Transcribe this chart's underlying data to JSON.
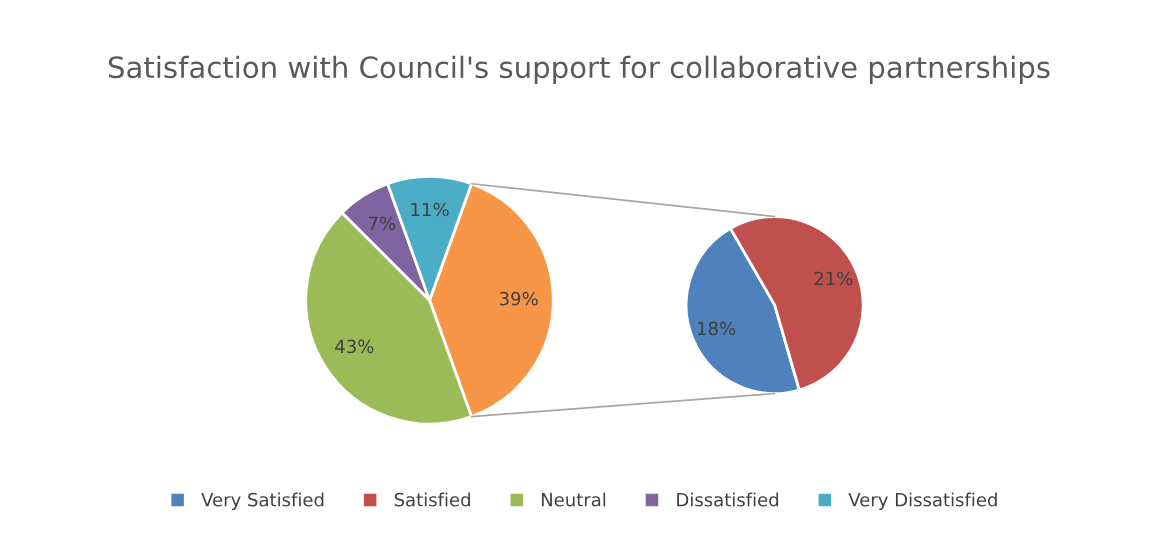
{
  "chart_data": [
    {
      "type": "pie",
      "title": "Satisfaction with Council's support for collaborative partnerships",
      "categories": [
        null,
        "Neutral",
        "Dissatisfied",
        "Very Dissatisfied"
      ],
      "values": [
        39,
        43,
        7,
        11
      ],
      "colors": [
        "#f79646",
        "#9bbb59",
        "#8064a2",
        "#4bacc6"
      ],
      "value_labels": [
        "39%",
        "43%",
        "7%",
        "11%"
      ],
      "legend": "bottom"
    },
    {
      "type": "pie",
      "categories": [
        "Very Satisfied",
        "Satisfied"
      ],
      "values": [
        18,
        21
      ],
      "colors": [
        "#4f81bd",
        "#c0504d"
      ],
      "value_labels": [
        "18%",
        "21%"
      ],
      "legend": "bottom"
    }
  ]
}
